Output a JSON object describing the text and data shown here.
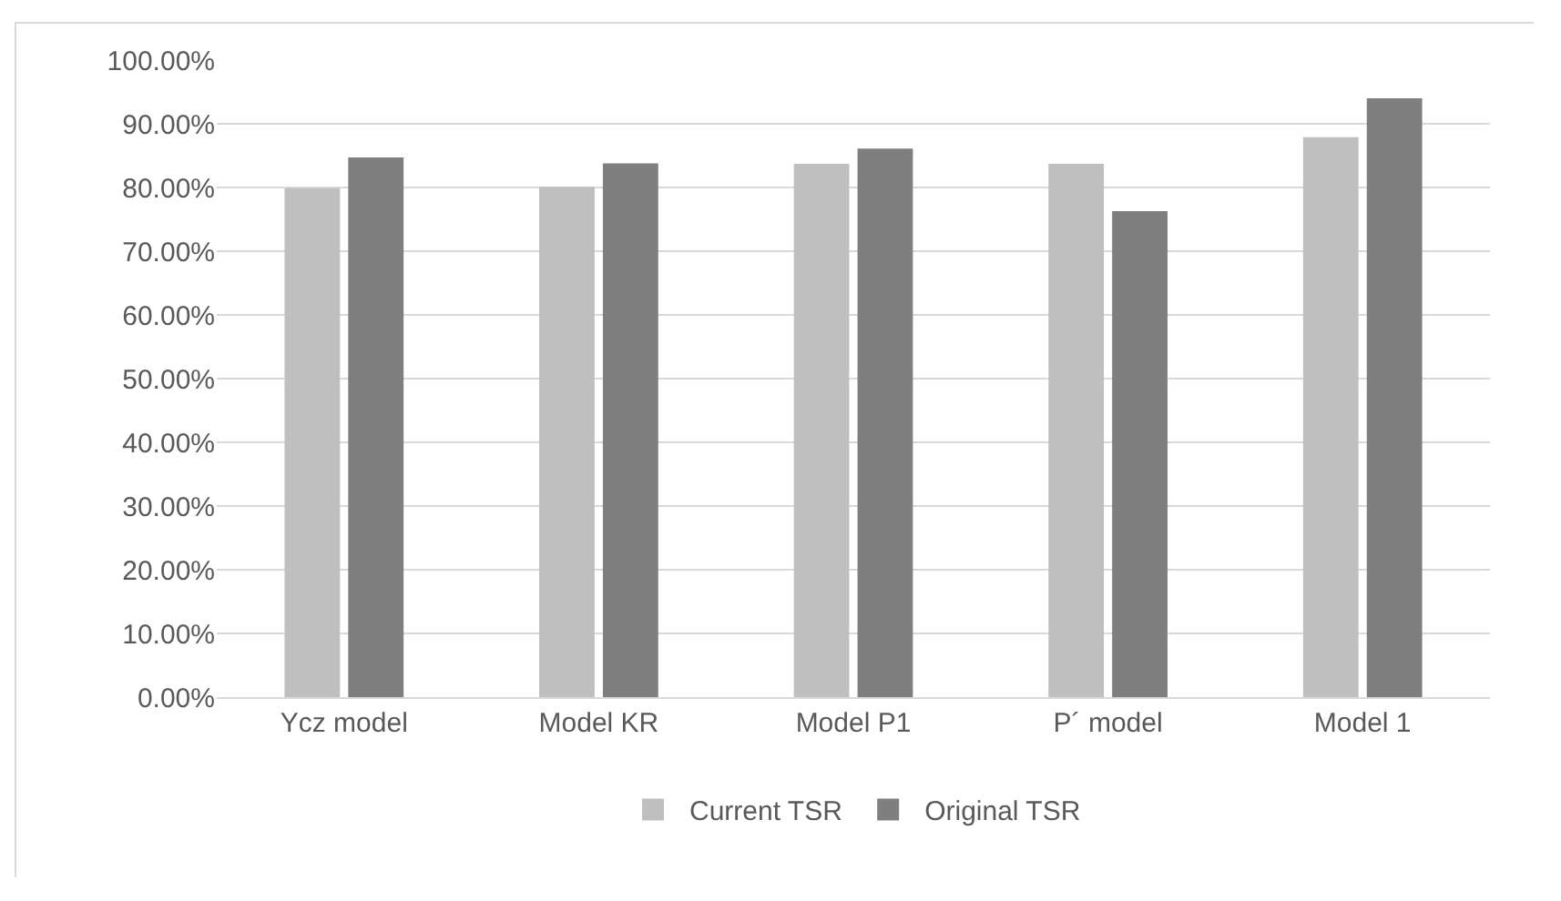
{
  "chart_data": {
    "type": "bar",
    "categories": [
      "Ycz model",
      "Model KR",
      "Model P1",
      "P´ model",
      "Model 1"
    ],
    "series": [
      {
        "name": "Current TSR",
        "color": "#bfbfbf",
        "values": [
          79.9,
          80.1,
          83.7,
          83.7,
          87.9
        ]
      },
      {
        "name": "Original TSR",
        "color": "#7f7f7f",
        "values": [
          84.7,
          83.8,
          86.1,
          76.3,
          94.0
        ]
      }
    ],
    "ylim": [
      0,
      100
    ],
    "yticks": [
      {
        "value": 0,
        "label": "0.00%"
      },
      {
        "value": 10,
        "label": "10.00%"
      },
      {
        "value": 20,
        "label": "20.00%"
      },
      {
        "value": 30,
        "label": "30.00%"
      },
      {
        "value": 40,
        "label": "40.00%"
      },
      {
        "value": 50,
        "label": "50.00%"
      },
      {
        "value": 60,
        "label": "60.00%"
      },
      {
        "value": 70,
        "label": "70.00%"
      },
      {
        "value": 80,
        "label": "80.00%"
      },
      {
        "value": 90,
        "label": "90.00%"
      },
      {
        "value": 100,
        "label": "100.00%"
      }
    ],
    "grid": "y",
    "legend": "bottom"
  }
}
